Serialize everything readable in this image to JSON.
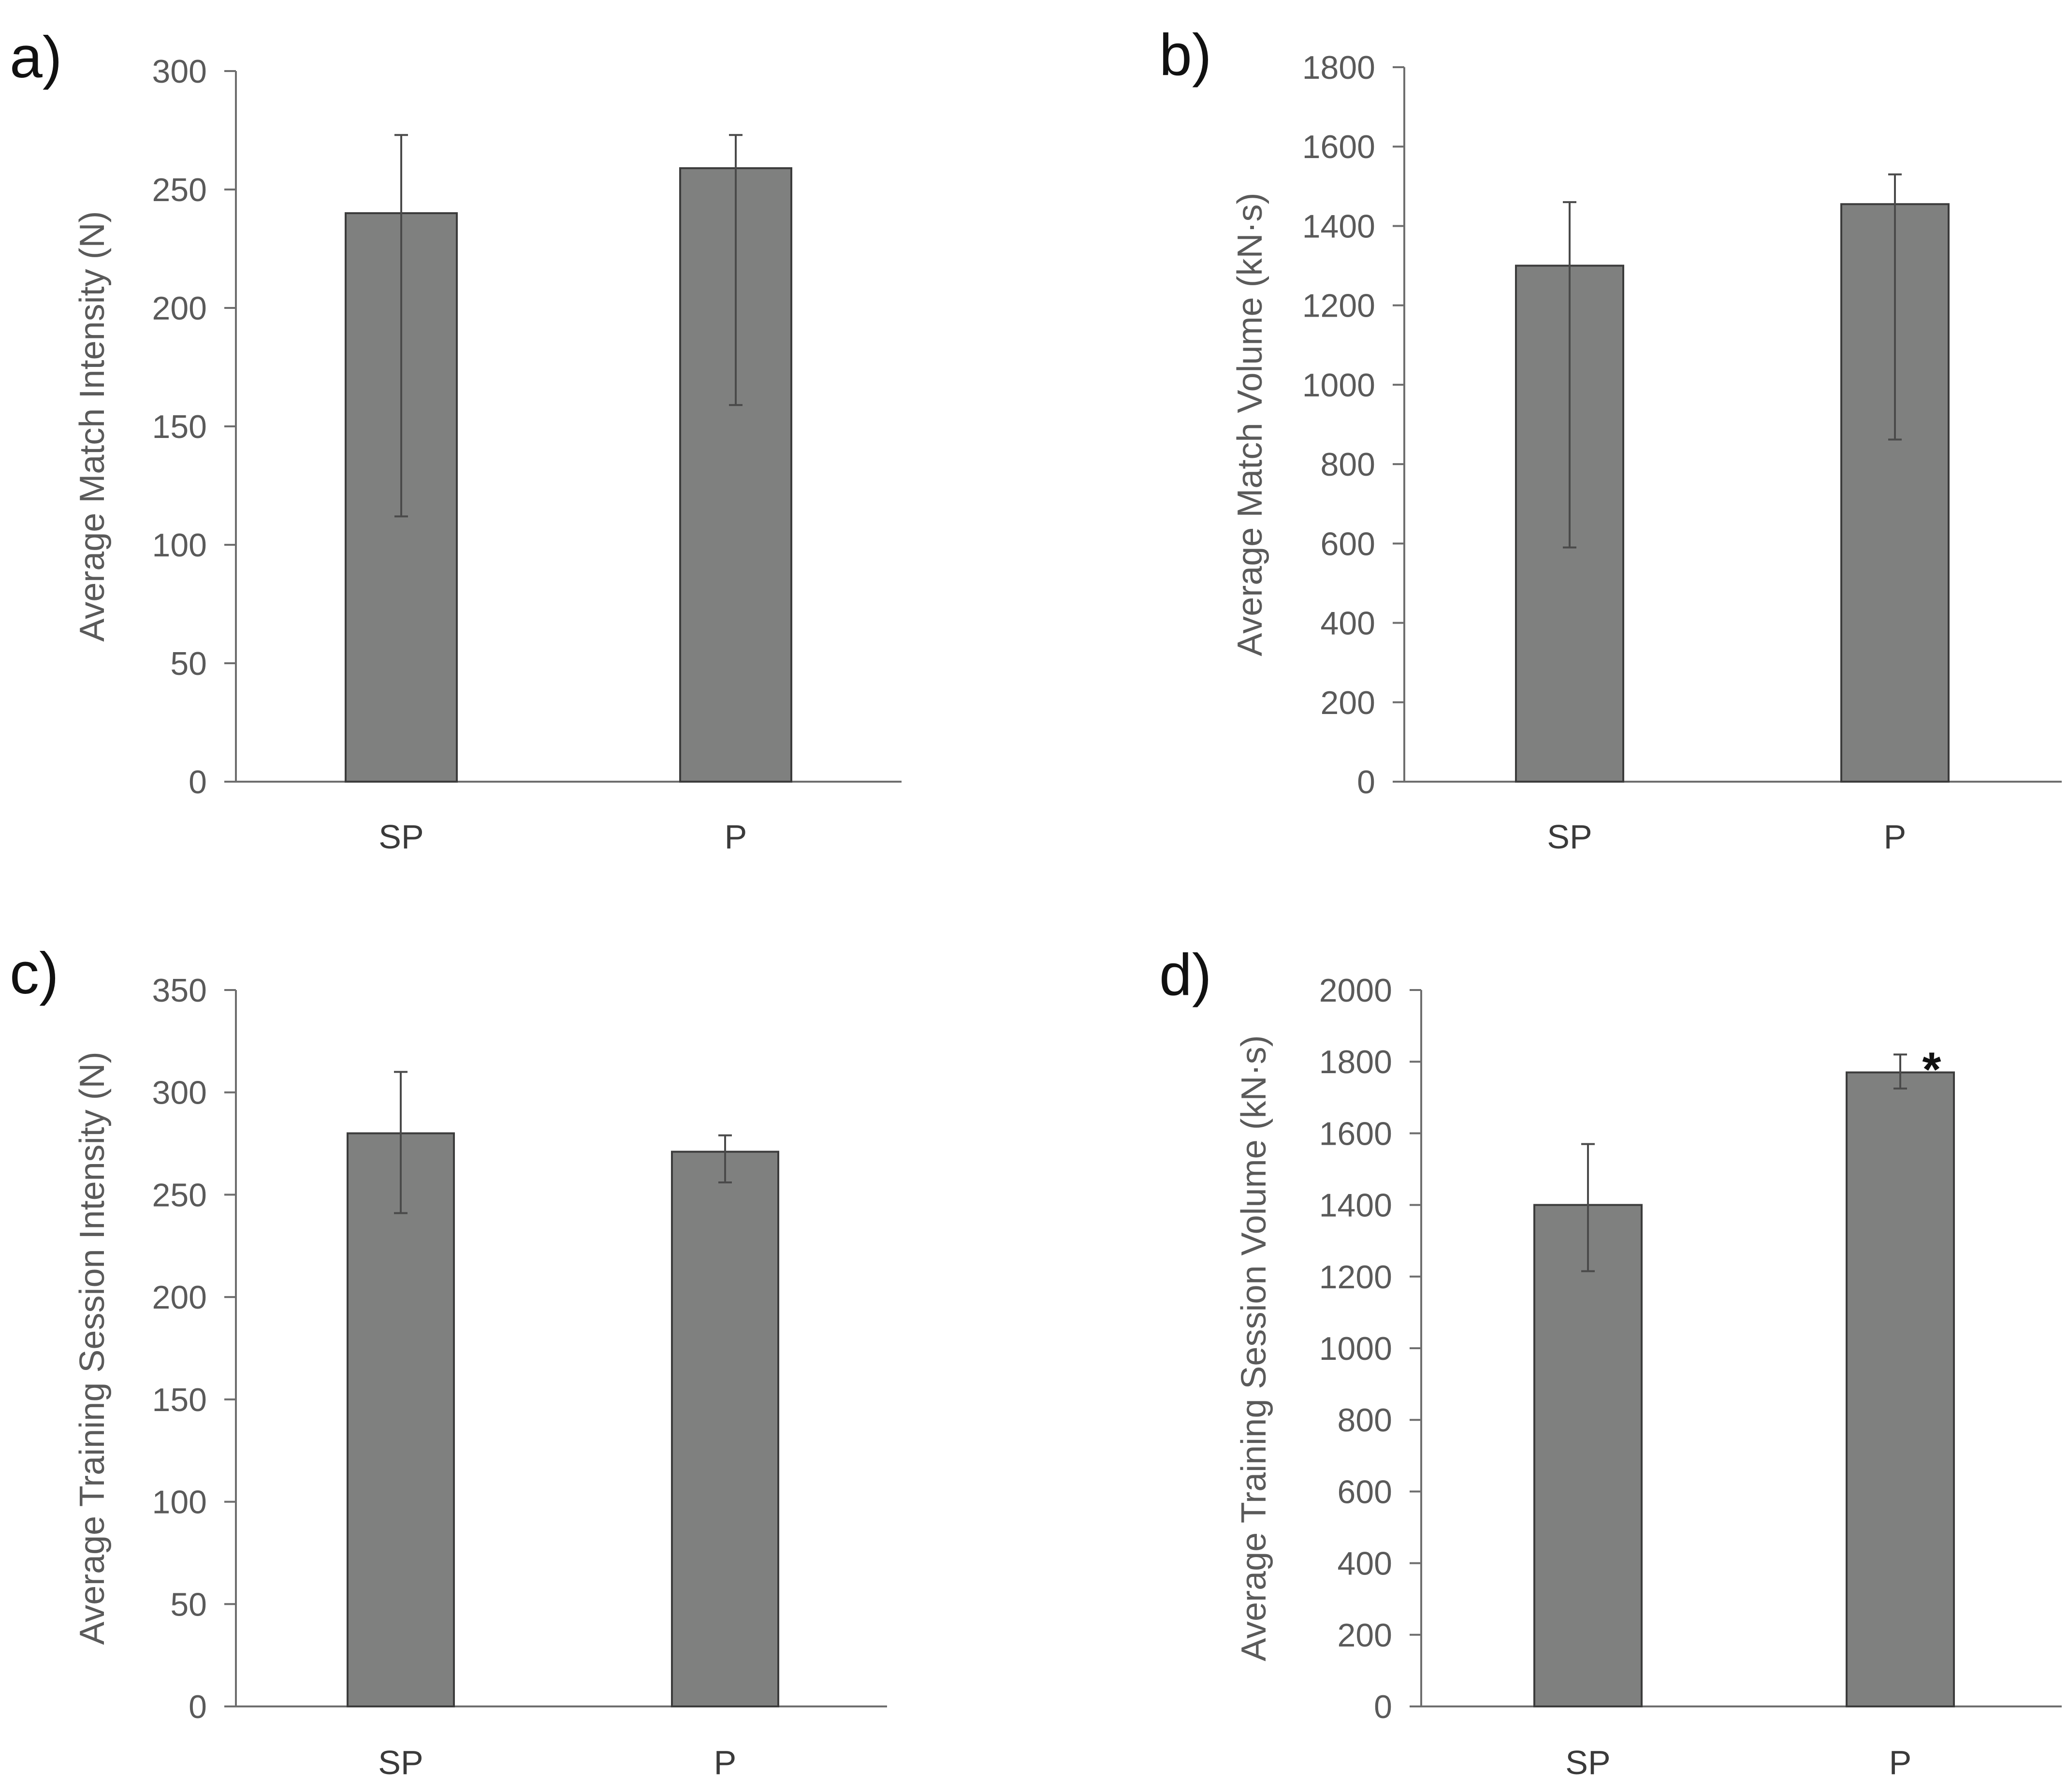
{
  "chart_data": [
    {
      "type": "bar",
      "panel_label": "a)",
      "categories": [
        "SP",
        "P"
      ],
      "values": [
        240,
        259
      ],
      "error_low": [
        112,
        159
      ],
      "error_high": [
        273,
        273
      ],
      "ylabel": "Average Match Intensity (N)",
      "ylim": [
        0,
        300
      ],
      "yticks": [
        "0",
        "50",
        "100",
        "150",
        "200",
        "250",
        "300"
      ],
      "annotations": [
        "",
        ""
      ]
    },
    {
      "type": "bar",
      "panel_label": "b)",
      "categories": [
        "SP",
        "P"
      ],
      "values": [
        1300,
        1455
      ],
      "error_low": [
        590,
        862
      ],
      "error_high": [
        1460,
        1530
      ],
      "ylabel": "Average Match Volume (kN·s)",
      "ylim": [
        0,
        1800
      ],
      "yticks": [
        "0",
        "200",
        "400",
        "600",
        "800",
        "1000",
        "1200",
        "1400",
        "1600",
        "1800"
      ],
      "annotations": [
        "",
        ""
      ]
    },
    {
      "type": "bar",
      "panel_label": "c)",
      "categories": [
        "SP",
        "P"
      ],
      "values": [
        280,
        271
      ],
      "error_low": [
        241,
        256
      ],
      "error_high": [
        310,
        279
      ],
      "ylabel": "Average Training Session Intensity (N)",
      "ylim": [
        0,
        350
      ],
      "yticks": [
        "0",
        "50",
        "100",
        "150",
        "200",
        "250",
        "300",
        "350"
      ],
      "annotations": [
        "",
        ""
      ]
    },
    {
      "type": "bar",
      "panel_label": "d)",
      "categories": [
        "SP",
        "P"
      ],
      "values": [
        1400,
        1770
      ],
      "error_low": [
        1215,
        1725
      ],
      "error_high": [
        1570,
        1820
      ],
      "ylabel": "Average Training Session Volume (kN·s)",
      "ylim": [
        0,
        2000
      ],
      "yticks": [
        "0",
        "200",
        "400",
        "600",
        "800",
        "1000",
        "1200",
        "1400",
        "1600",
        "1800",
        "2000"
      ],
      "annotations": [
        "",
        "*"
      ]
    }
  ]
}
